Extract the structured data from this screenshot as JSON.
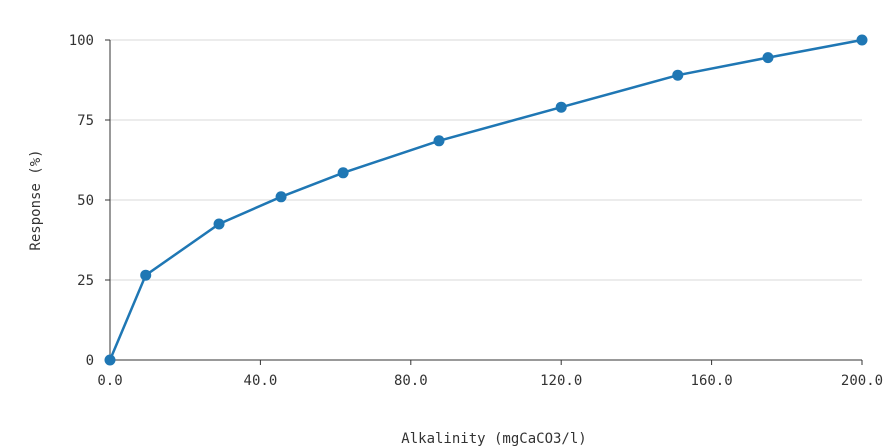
{
  "chart_data": {
    "type": "line",
    "title": "",
    "xlabel": "Alkalinity (mgCaCO3/l)",
    "ylabel": "Response (%)",
    "xlim": [
      0,
      200
    ],
    "ylim": [
      0,
      100
    ],
    "x_ticks": [
      "0.0",
      "40.0",
      "80.0",
      "120.0",
      "160.0",
      "200.0"
    ],
    "x_tick_values": [
      0,
      40,
      80,
      120,
      160,
      200
    ],
    "y_ticks": [
      "0",
      "25",
      "50",
      "75",
      "100"
    ],
    "y_tick_values": [
      0,
      25,
      50,
      75,
      100
    ],
    "grid": "horizontal",
    "legend": "none",
    "series_color": "#1f77b4",
    "series": [
      {
        "x": [
          0,
          9.5,
          29,
          45.5,
          62,
          87.5,
          120,
          151,
          175,
          200
        ],
        "y": [
          0,
          26.5,
          42.5,
          51,
          58.5,
          68.5,
          79,
          89,
          94.5,
          100
        ]
      }
    ]
  }
}
